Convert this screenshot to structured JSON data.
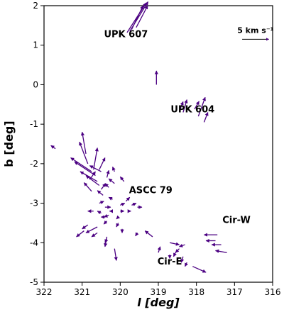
{
  "chart_data": {
    "type": "quiver",
    "title": "",
    "xlabel": "l [deg]",
    "ylabel": "b [deg]",
    "xlim": [
      322,
      316
    ],
    "ylim": [
      -5,
      2
    ],
    "x_inverted": true,
    "xticks": [
      322,
      321,
      320,
      319,
      318,
      317,
      316
    ],
    "yticks": [
      -5,
      -4,
      -3,
      -2,
      -1,
      0,
      1,
      2
    ],
    "grid": false,
    "vector_color": "#4b0082",
    "scale_bar": {
      "label": "5 km s⁻¹",
      "l": 316.8,
      "b": 1.15,
      "dl": -0.7,
      "db": 0
    },
    "annotations": [
      {
        "text": "UPK 607",
        "l": 319.85,
        "b": 1.2
      },
      {
        "text": "UPK 604",
        "l": 318.1,
        "b": -0.7
      },
      {
        "text": "ASCC 79",
        "l": 319.2,
        "b": -2.75
      },
      {
        "text": "Cir-W",
        "l": 316.95,
        "b": -3.5
      },
      {
        "text": "Cir-E",
        "l": 318.7,
        "b": -4.55
      }
    ],
    "vectors": [
      {
        "l": 319.82,
        "b": 1.32,
        "dl": -0.5,
        "db": 0.75
      },
      {
        "l": 319.75,
        "b": 1.35,
        "dl": -0.48,
        "db": 0.75
      },
      {
        "l": 319.7,
        "b": 1.4,
        "dl": -0.3,
        "db": 0.6
      },
      {
        "l": 319.58,
        "b": 1.45,
        "dl": -0.3,
        "db": 0.55
      },
      {
        "l": 319.05,
        "b": 0.0,
        "dl": 0.0,
        "db": 0.35
      },
      {
        "l": 318.45,
        "b": -0.68,
        "dl": -0.1,
        "db": 0.25
      },
      {
        "l": 318.35,
        "b": -0.7,
        "dl": -0.1,
        "db": 0.32
      },
      {
        "l": 318.05,
        "b": -0.62,
        "dl": -0.12,
        "db": 0.2
      },
      {
        "l": 317.95,
        "b": -0.8,
        "dl": -0.18,
        "db": 0.48
      },
      {
        "l": 317.8,
        "b": -0.95,
        "dl": -0.1,
        "db": 0.25
      },
      {
        "l": 321.7,
        "b": -1.62,
        "dl": 0.12,
        "db": 0.08
      },
      {
        "l": 320.9,
        "b": -1.75,
        "dl": 0.1,
        "db": 0.55
      },
      {
        "l": 320.85,
        "b": -2.0,
        "dl": 0.22,
        "db": 0.55
      },
      {
        "l": 320.7,
        "b": -2.15,
        "dl": -0.1,
        "db": 0.55
      },
      {
        "l": 320.75,
        "b": -2.2,
        "dl": 0.55,
        "db": 0.35
      },
      {
        "l": 320.65,
        "b": -2.3,
        "dl": 0.55,
        "db": 0.35
      },
      {
        "l": 320.6,
        "b": -2.45,
        "dl": 0.45,
        "db": 0.25
      },
      {
        "l": 320.55,
        "b": -2.55,
        "dl": 0.35,
        "db": 0.25
      },
      {
        "l": 320.5,
        "b": -2.2,
        "dl": 0.3,
        "db": 0.15
      },
      {
        "l": 320.8,
        "b": -2.4,
        "dl": -0.15,
        "db": 0.2
      },
      {
        "l": 320.55,
        "b": -2.15,
        "dl": -0.15,
        "db": 0.3
      },
      {
        "l": 320.35,
        "b": -2.35,
        "dl": -0.05,
        "db": 0.18
      },
      {
        "l": 320.5,
        "b": -2.65,
        "dl": -0.12,
        "db": 0.15
      },
      {
        "l": 320.75,
        "b": -2.7,
        "dl": 0.2,
        "db": 0.22
      },
      {
        "l": 320.45,
        "b": -2.8,
        "dl": 0.15,
        "db": 0.12
      },
      {
        "l": 320.3,
        "b": -2.6,
        "dl": 0.1,
        "db": 0.1
      },
      {
        "l": 320.15,
        "b": -2.5,
        "dl": 0.15,
        "db": 0.12
      },
      {
        "l": 320.15,
        "b": -2.2,
        "dl": 0.05,
        "db": 0.12
      },
      {
        "l": 319.9,
        "b": -2.45,
        "dl": 0.1,
        "db": 0.12
      },
      {
        "l": 320.55,
        "b": -3.0,
        "dl": -0.12,
        "db": 0.05
      },
      {
        "l": 320.4,
        "b": -3.1,
        "dl": -0.15,
        "db": 0.0
      },
      {
        "l": 320.2,
        "b": -2.9,
        "dl": 0.1,
        "db": 0.05
      },
      {
        "l": 320.0,
        "b": -3.05,
        "dl": -0.12,
        "db": 0.05
      },
      {
        "l": 319.85,
        "b": -2.95,
        "dl": -0.1,
        "db": 0.1
      },
      {
        "l": 319.7,
        "b": -3.05,
        "dl": -0.12,
        "db": 0.05
      },
      {
        "l": 319.55,
        "b": -3.1,
        "dl": -0.12,
        "db": 0.0
      },
      {
        "l": 320.2,
        "b": -3.2,
        "dl": 0.08,
        "db": 0.0
      },
      {
        "l": 320.0,
        "b": -3.2,
        "dl": -0.1,
        "db": 0.0
      },
      {
        "l": 319.8,
        "b": -3.2,
        "dl": -0.08,
        "db": 0.0
      },
      {
        "l": 320.3,
        "b": -3.3,
        "dl": 0.12,
        "db": -0.05
      },
      {
        "l": 320.05,
        "b": -3.35,
        "dl": 0.05,
        "db": -0.05
      },
      {
        "l": 320.7,
        "b": -3.2,
        "dl": 0.15,
        "db": 0.0
      },
      {
        "l": 320.35,
        "b": -3.45,
        "dl": 0.08,
        "db": -0.08
      },
      {
        "l": 320.05,
        "b": -3.5,
        "dl": 0.05,
        "db": -0.1
      },
      {
        "l": 320.85,
        "b": -3.55,
        "dl": 0.15,
        "db": -0.1
      },
      {
        "l": 320.6,
        "b": -3.6,
        "dl": 0.3,
        "db": -0.15
      },
      {
        "l": 320.95,
        "b": -3.7,
        "dl": 0.2,
        "db": -0.15
      },
      {
        "l": 320.6,
        "b": -3.75,
        "dl": 0.15,
        "db": -0.1
      },
      {
        "l": 320.35,
        "b": -3.9,
        "dl": 0.05,
        "db": -0.1
      },
      {
        "l": 320.35,
        "b": -3.85,
        "dl": 0.05,
        "db": -0.25
      },
      {
        "l": 320.15,
        "b": -4.15,
        "dl": -0.05,
        "db": -0.3
      },
      {
        "l": 320.4,
        "b": -3.35,
        "dl": 0.1,
        "db": 0.0
      },
      {
        "l": 319.95,
        "b": -3.65,
        "dl": 0.0,
        "db": -0.1
      },
      {
        "l": 320.5,
        "b": -3.25,
        "dl": 0.1,
        "db": 0.05
      },
      {
        "l": 319.55,
        "b": -3.75,
        "dl": 0.05,
        "db": -0.08
      },
      {
        "l": 319.15,
        "b": -3.85,
        "dl": 0.2,
        "db": 0.15
      },
      {
        "l": 319.0,
        "b": -4.25,
        "dl": -0.05,
        "db": 0.15
      },
      {
        "l": 318.7,
        "b": -4.0,
        "dl": -0.25,
        "db": -0.05
      },
      {
        "l": 318.3,
        "b": -4.05,
        "dl": 0.15,
        "db": -0.05
      },
      {
        "l": 318.45,
        "b": -4.15,
        "dl": 0.1,
        "db": -0.1
      },
      {
        "l": 318.55,
        "b": -4.25,
        "dl": 0.05,
        "db": -0.1
      },
      {
        "l": 318.7,
        "b": -4.3,
        "dl": 0.0,
        "db": -0.1
      },
      {
        "l": 318.35,
        "b": -4.35,
        "dl": 0.05,
        "db": -0.15
      },
      {
        "l": 318.25,
        "b": -4.5,
        "dl": 0.05,
        "db": -0.1
      },
      {
        "l": 318.1,
        "b": -4.6,
        "dl": -0.35,
        "db": -0.15
      },
      {
        "l": 317.45,
        "b": -3.8,
        "dl": 0.35,
        "db": 0.0
      },
      {
        "l": 317.5,
        "b": -3.95,
        "dl": 0.25,
        "db": 0.0
      },
      {
        "l": 317.35,
        "b": -4.05,
        "dl": 0.25,
        "db": 0.0
      },
      {
        "l": 317.2,
        "b": -4.25,
        "dl": 0.3,
        "db": 0.05
      }
    ]
  }
}
